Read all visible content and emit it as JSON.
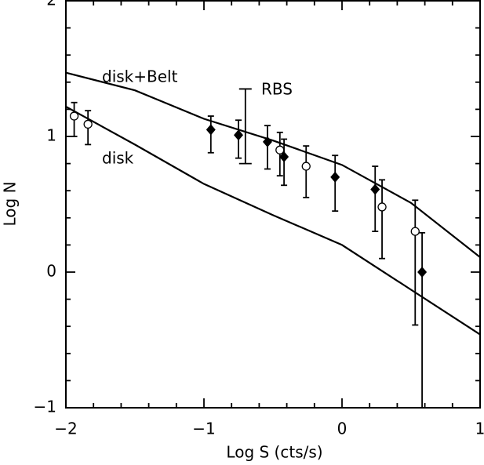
{
  "chart_data": {
    "type": "scatter",
    "xlabel": "Log S (cts/s)",
    "ylabel": "Log N",
    "xlim": [
      -2,
      1
    ],
    "ylim": [
      -1,
      2
    ],
    "xticks": [
      {
        "value": -2,
        "label": "−2"
      },
      {
        "value": -1,
        "label": "−1"
      },
      0,
      1
    ],
    "yticks": [
      {
        "value": -1,
        "label": "−1"
      },
      0,
      1,
      2
    ],
    "xminorticks": [
      -1.8,
      -1.6,
      -1.4,
      -1.2,
      -0.8,
      -0.6,
      -0.4,
      -0.2,
      0.2,
      0.4,
      0.6,
      0.8
    ],
    "yminorticks": [
      -0.8,
      -0.6,
      -0.4,
      -0.2,
      0.2,
      0.4,
      0.6,
      0.8,
      1.2,
      1.4,
      1.6,
      1.8
    ],
    "color": "#000000",
    "curves": [
      {
        "x": [
          -2,
          -1.5,
          -1,
          -0.5,
          0,
          0.5,
          1
        ],
        "values": [
          1.47,
          1.34,
          1.13,
          0.97,
          0.79,
          0.51,
          0.11
        ]
      },
      {
        "x": [
          -2,
          -1.5,
          -1,
          -0.5,
          0,
          0.5,
          1
        ],
        "values": [
          1.22,
          0.94,
          0.65,
          0.42,
          0.2,
          -0.13,
          -0.46
        ]
      }
    ],
    "series": [
      {
        "marker": "diamond",
        "x": [
          -0.95,
          -0.75,
          -0.54,
          -0.42,
          -0.05,
          0.24,
          0.58
        ],
        "values": [
          1.05,
          1.01,
          0.96,
          0.85,
          0.7,
          0.61,
          0.0
        ],
        "err_low": [
          0.88,
          0.84,
          0.76,
          0.64,
          0.45,
          0.3,
          -1
        ],
        "err_high": [
          1.15,
          1.12,
          1.08,
          0.98,
          0.86,
          0.78,
          0.29
        ]
      },
      {
        "marker": "circle",
        "x": [
          -1.94,
          -1.84,
          -0.45,
          -0.26,
          0.29,
          0.53
        ],
        "values": [
          1.15,
          1.09,
          0.9,
          0.78,
          0.48,
          0.3
        ],
        "err_low": [
          1.0,
          0.94,
          0.71,
          0.55,
          0.1,
          -0.39
        ],
        "err_high": [
          1.25,
          1.19,
          1.03,
          0.93,
          0.68,
          0.53
        ]
      }
    ],
    "rbs_bar": {
      "x": -0.7,
      "low": 0.8,
      "high": 1.35
    },
    "annotations": [
      "disk+Belt",
      "disk",
      "RBS"
    ]
  }
}
